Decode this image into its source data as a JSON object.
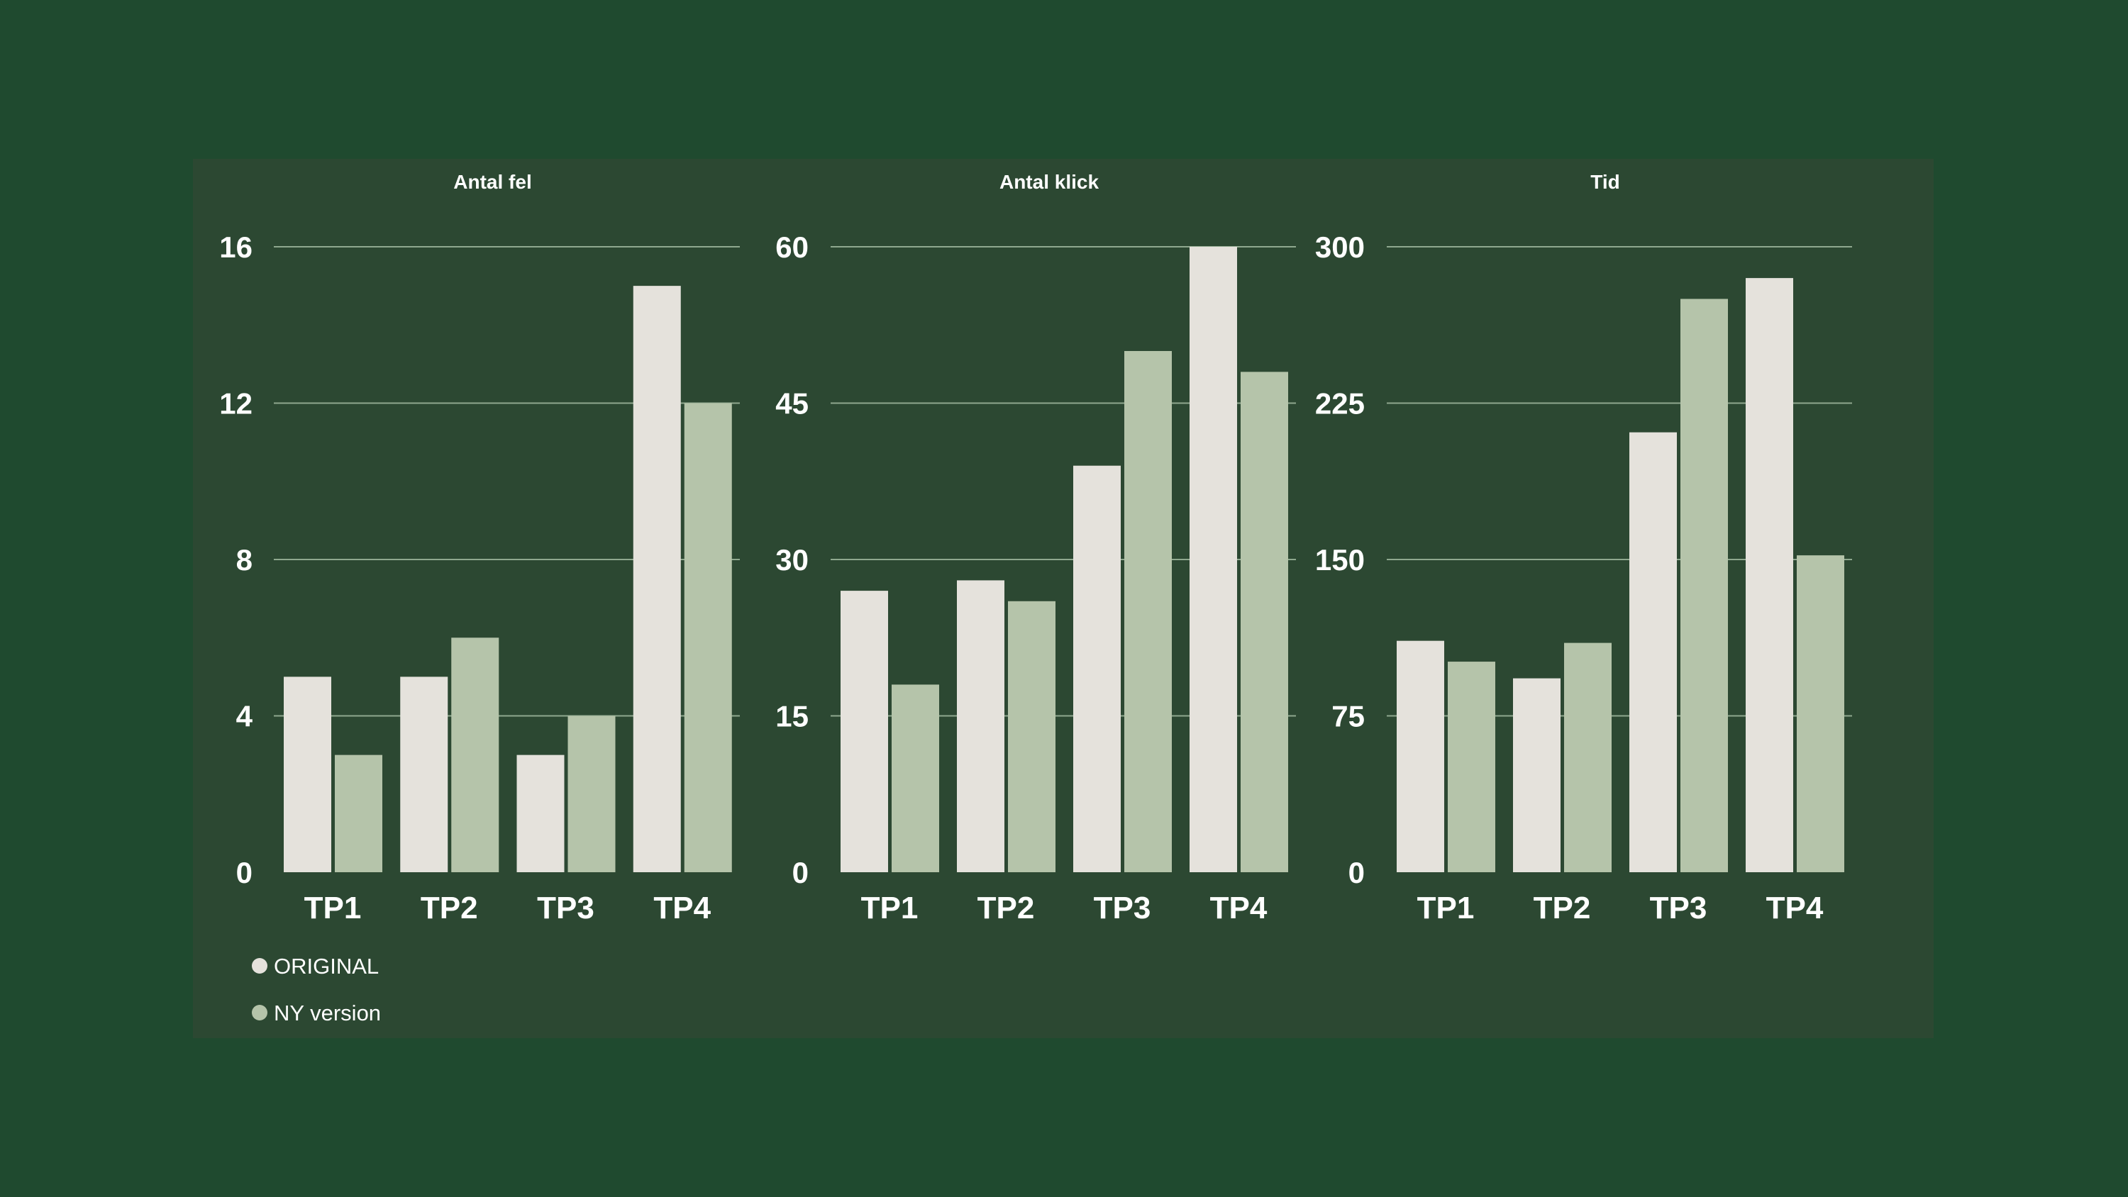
{
  "colors": {
    "background": "#1f4a2f",
    "panel": "#2c4832",
    "grid": "#8fa88f",
    "original": "#e5e2dc",
    "ny_version": "#b5c4aa"
  },
  "legend": [
    {
      "label": "ORIGINAL",
      "color": "#e5e2dc"
    },
    {
      "label": "NY version",
      "color": "#b5c4aa"
    }
  ],
  "chart_data": [
    {
      "type": "bar",
      "title": "Antal fel",
      "categories": [
        "TP1",
        "TP2",
        "TP3",
        "TP4"
      ],
      "series": [
        {
          "name": "ORIGINAL",
          "values": [
            5,
            5,
            3,
            15
          ]
        },
        {
          "name": "NY version",
          "values": [
            3,
            6,
            4,
            12
          ]
        }
      ],
      "ylim": [
        0,
        16
      ],
      "yticks": [
        "0",
        "4",
        "8",
        "12",
        "16"
      ],
      "grid": true,
      "legend_position": "bottom-left"
    },
    {
      "type": "bar",
      "title": "Antal klick",
      "categories": [
        "TP1",
        "TP2",
        "TP3",
        "TP4"
      ],
      "series": [
        {
          "name": "ORIGINAL",
          "values": [
            27,
            28,
            39,
            60
          ]
        },
        {
          "name": "NY version",
          "values": [
            18,
            26,
            50,
            48
          ]
        }
      ],
      "ylim": [
        0,
        60
      ],
      "yticks": [
        "0",
        "15",
        "30",
        "45",
        "60"
      ],
      "grid": true
    },
    {
      "type": "bar",
      "title": "Tid",
      "categories": [
        "TP1",
        "TP2",
        "TP3",
        "TP4"
      ],
      "series": [
        {
          "name": "ORIGINAL",
          "values": [
            111,
            93,
            211,
            285
          ]
        },
        {
          "name": "NY version",
          "values": [
            101,
            110,
            275,
            152
          ]
        }
      ],
      "ylim": [
        0,
        300
      ],
      "yticks": [
        "0",
        "75",
        "150",
        "225",
        "300"
      ],
      "grid": true
    }
  ]
}
